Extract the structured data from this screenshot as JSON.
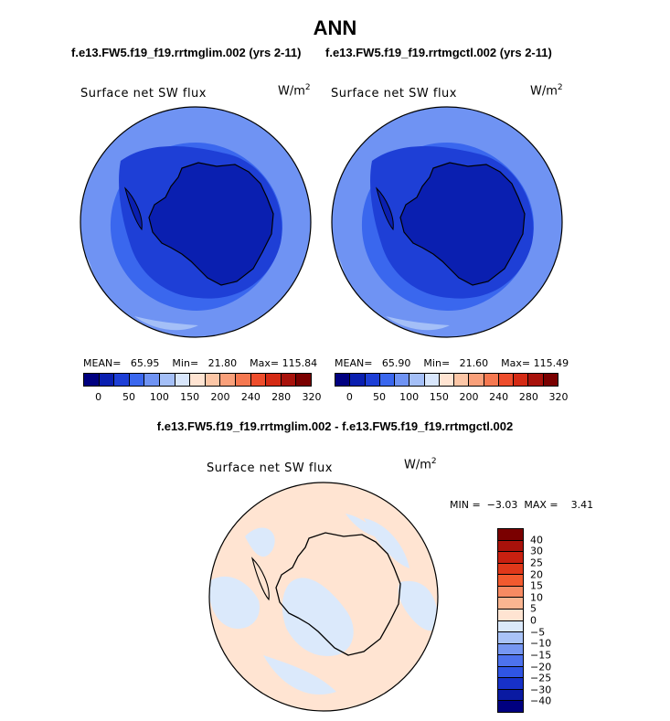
{
  "title": "ANN",
  "left_panel": {
    "case_title": "f.e13.FW5.f19_f19.rrtmglim.002 (yrs 2-11)",
    "variable": "Surface net SW flux",
    "units_base": "W/m",
    "units_exp": "2",
    "mean_label": "MEAN=",
    "mean": "65.95",
    "min_label": "Min=",
    "min": "21.80",
    "max_label": "Max=",
    "max": "115.84",
    "colorbar_ticks": [
      "0",
      "50",
      "100",
      "150",
      "200",
      "240",
      "280",
      "320"
    ]
  },
  "right_panel": {
    "case_title": "f.e13.FW5.f19_f19.rrtmgctl.002 (yrs 2-11)",
    "variable": "Surface net SW flux",
    "units_base": "W/m",
    "units_exp": "2",
    "mean_label": "MEAN=",
    "mean": "65.90",
    "min_label": "Min=",
    "min": "21.60",
    "max_label": "Max=",
    "max": "115.49",
    "colorbar_ticks": [
      "0",
      "50",
      "100",
      "150",
      "200",
      "240",
      "280",
      "320"
    ]
  },
  "diff_panel": {
    "case_title": "f.e13.FW5.f19_f19.rrtmglim.002 - f.e13.FW5.f19_f19.rrtmgctl.002",
    "variable": "Surface net SW flux",
    "units_base": "W/m",
    "units_exp": "2",
    "minmax_text": "MIN =  −3.03  MAX =    3.41",
    "colorbar_ticks": [
      "40",
      "30",
      "25",
      "20",
      "15",
      "10",
      "5",
      "0",
      "−5",
      "−10",
      "−15",
      "−20",
      "−25",
      "−30",
      "−40"
    ]
  },
  "colors": {
    "abs_colorbar": [
      "#000080",
      "#0a1fb0",
      "#1e3fd6",
      "#3a67ee",
      "#6f93f3",
      "#a4bff7",
      "#d8e6fb",
      "#ffe4d2",
      "#fcc6a6",
      "#f9a07a",
      "#f57850",
      "#ee4d2c",
      "#d42a14",
      "#a8120b",
      "#7a0000"
    ],
    "diff_colorbar": [
      "#7a0000",
      "#a8120b",
      "#c92010",
      "#e0381a",
      "#f25a2e",
      "#f78a62",
      "#fab591",
      "#ffe4d2",
      "#dbe9fb",
      "#a9c3f7",
      "#7697f2",
      "#4d72ed",
      "#2f55e4",
      "#1731c8",
      "#0a1aa2",
      "#000080"
    ],
    "map_deep_blue": "#1e3fd6",
    "map_mid_blue": "#3a67ee",
    "map_light_blue": "#6f93f3",
    "diff_pos": "#ffe4d2",
    "diff_neg": "#dbe9fb"
  }
}
